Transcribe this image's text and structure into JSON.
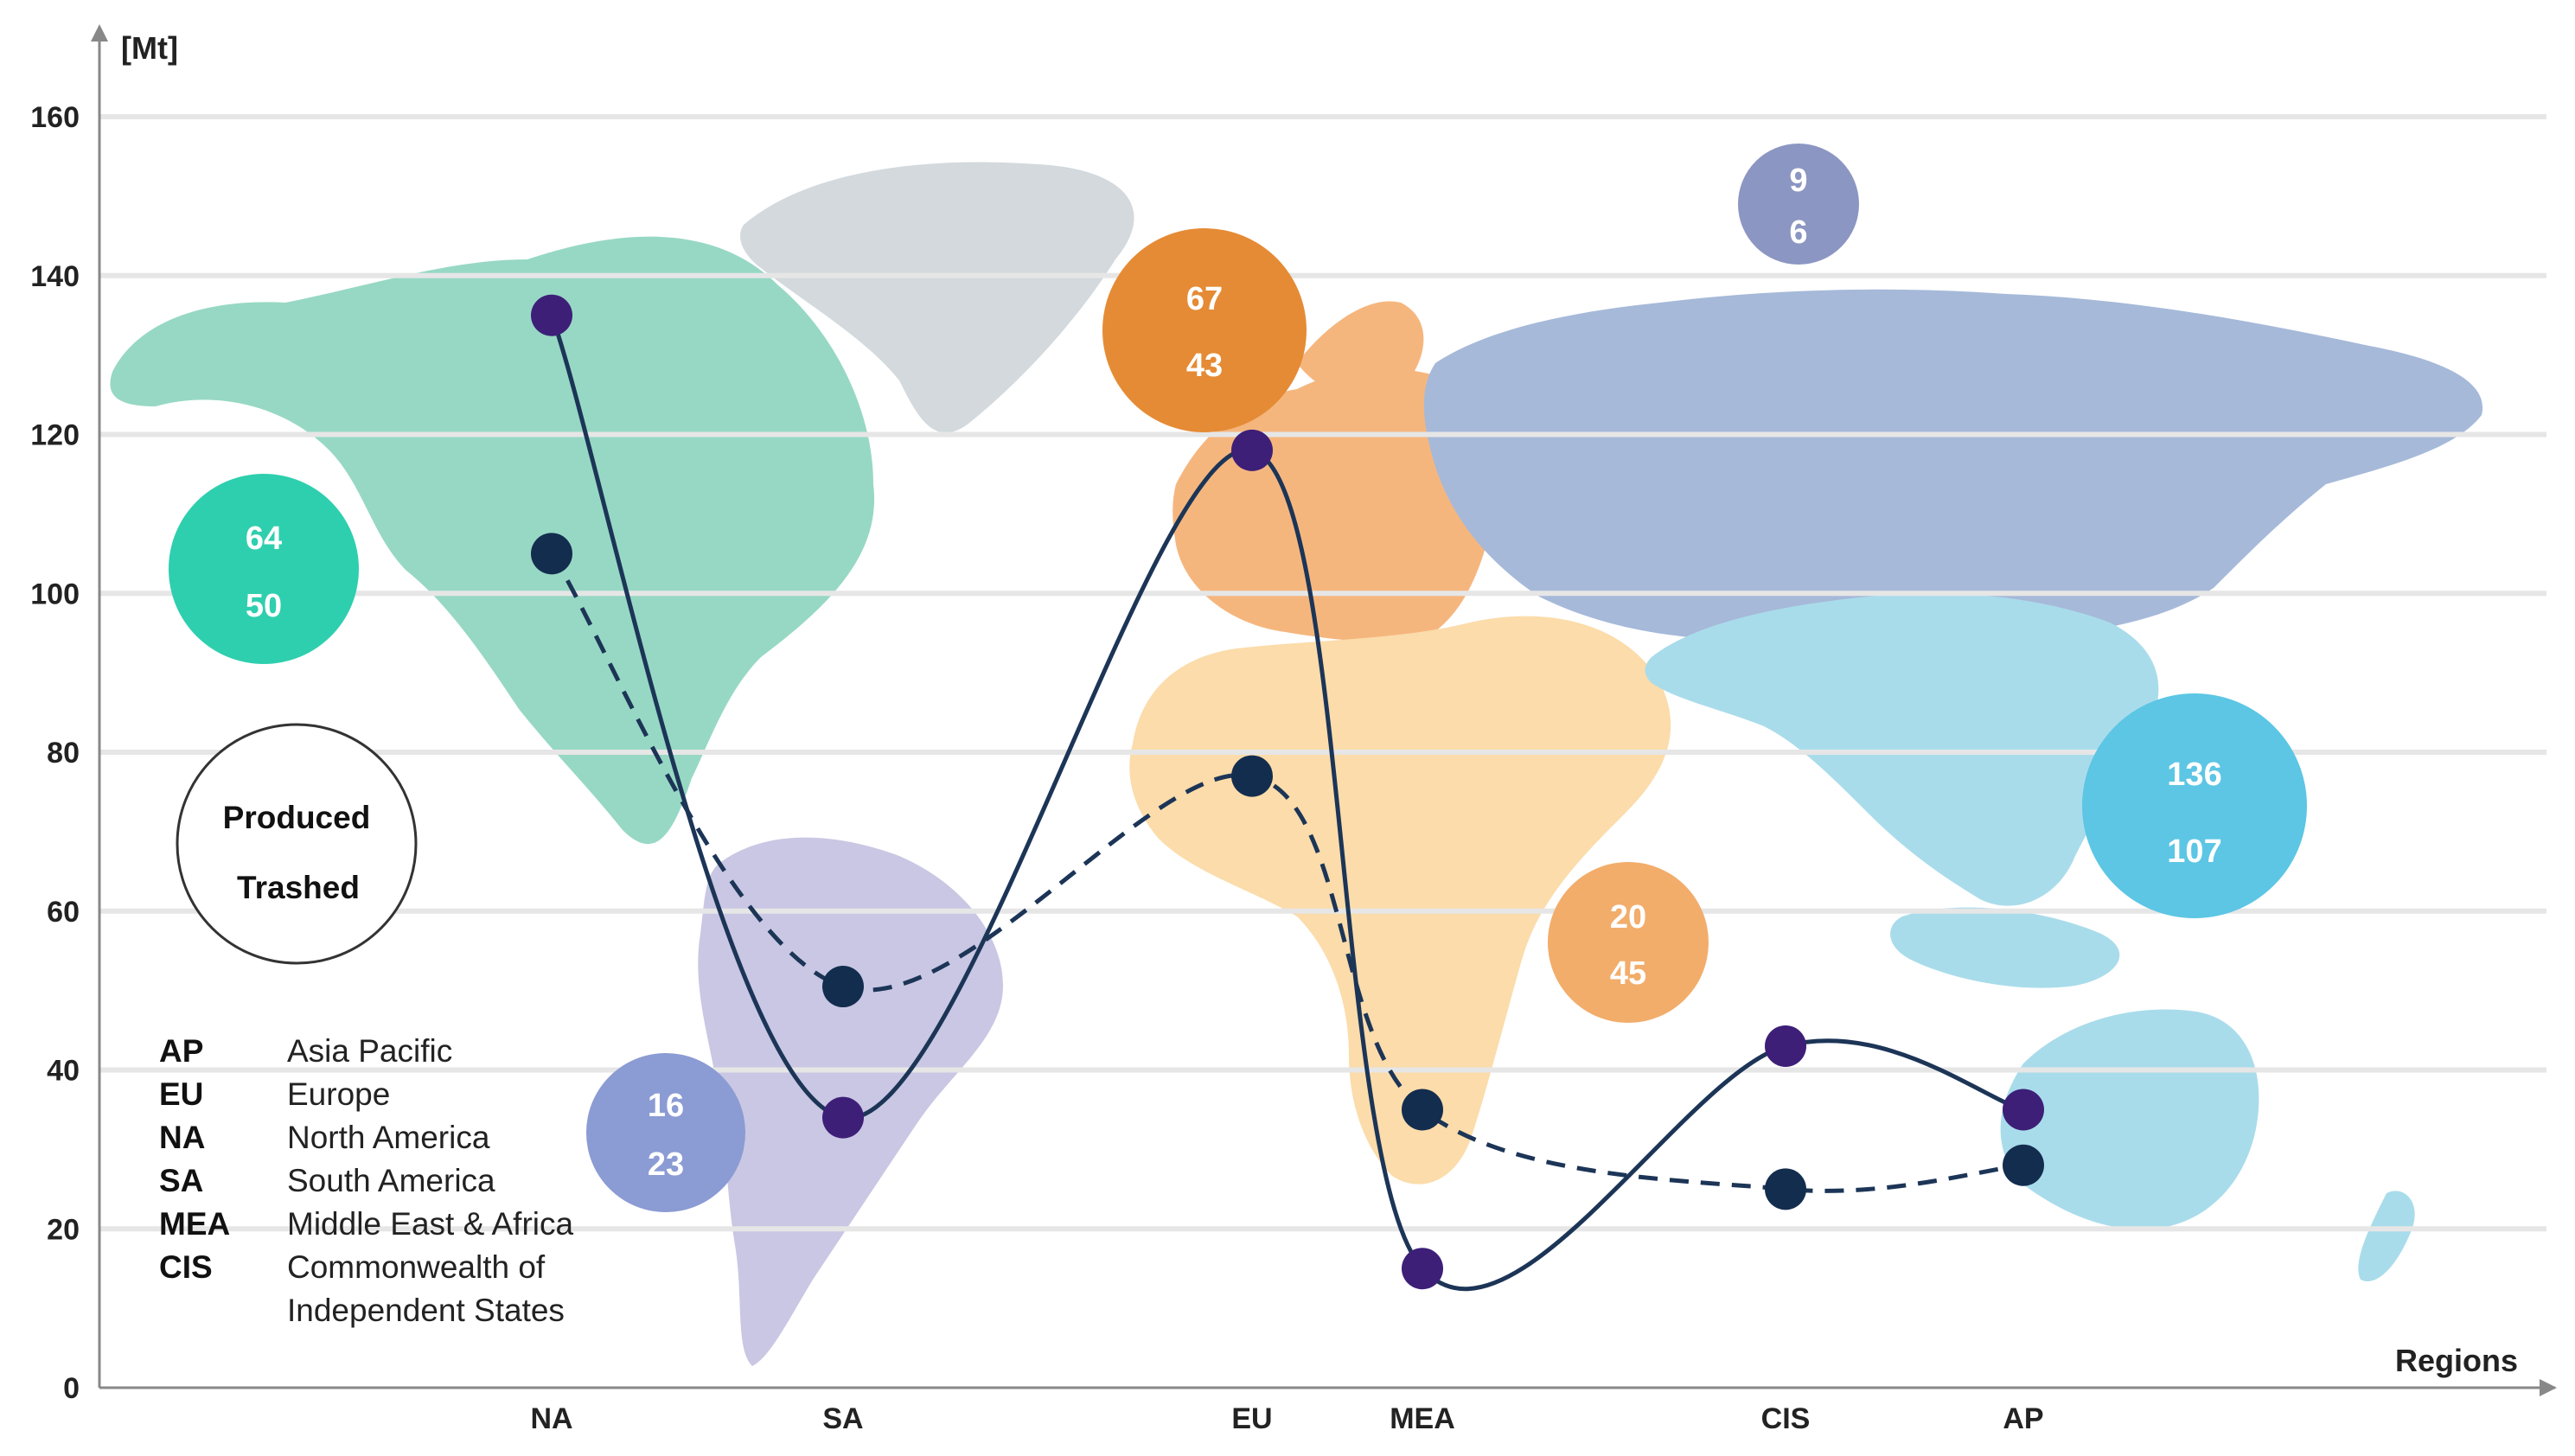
{
  "chart_data": {
    "type": "line",
    "ylabel": "[Mt]",
    "xlabel": "Regions",
    "ylim": [
      0,
      160
    ],
    "yticks": [
      0,
      20,
      40,
      60,
      80,
      100,
      120,
      140,
      160
    ],
    "grid": true,
    "categories": [
      "NA",
      "SA",
      "EU",
      "MEA",
      "CIS",
      "AP"
    ],
    "series": [
      {
        "name": "Produced",
        "line_style": "solid",
        "marker_color": "#3d1f78",
        "values": [
          135,
          34,
          118,
          15,
          43,
          35
        ]
      },
      {
        "name": "Trashed",
        "line_style": "dashed",
        "marker_color": "#132d4f",
        "values": [
          105,
          50.5,
          77,
          35,
          25,
          28
        ]
      }
    ],
    "bubbles": [
      {
        "region": "NA",
        "produced": "64",
        "trashed": "50",
        "color": "#2ecfae"
      },
      {
        "region": "SA",
        "produced": "16",
        "trashed": "23",
        "color": "#8b9bd3"
      },
      {
        "region": "EU",
        "produced": "67",
        "trashed": "43",
        "color": "#e58b35"
      },
      {
        "region": "MEA",
        "produced": "20",
        "trashed": "45",
        "color": "#f2ad6b"
      },
      {
        "region": "CIS",
        "produced": "9",
        "trashed": "6",
        "color": "#8c96c2"
      },
      {
        "region": "AP",
        "produced": "136",
        "trashed": "107",
        "color": "#5cc6e4"
      }
    ],
    "bubble_legend": {
      "top": "Produced",
      "bottom": "Trashed"
    },
    "abbreviations": [
      {
        "code": "AP",
        "name": [
          "Asia Pacific"
        ]
      },
      {
        "code": "EU",
        "name": [
          "Europe"
        ]
      },
      {
        "code": "NA",
        "name": [
          "North America"
        ]
      },
      {
        "code": "SA",
        "name": [
          "South America"
        ]
      },
      {
        "code": "MEA",
        "name": [
          "Middle East & Africa"
        ]
      },
      {
        "code": "CIS",
        "name": [
          "Commonwealth of",
          "Independent States"
        ]
      }
    ],
    "map_region_colors": {
      "north_america": "#97d8c4",
      "greenland": "#d3d9dc",
      "south_america": "#c9c7e3",
      "europe": "#f5b67e",
      "africa_middle_east": "#fbdcaa",
      "russia_cis": "#a6b9d9",
      "asia_pacific": "#a9dceb"
    },
    "line_color": "#1c3557"
  }
}
